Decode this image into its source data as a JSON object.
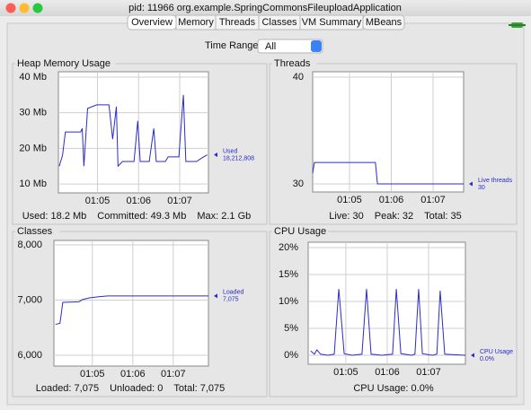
{
  "window": {
    "title": "pid: 11966 org.example.SpringCommonsFileuploadApplication",
    "tabs": [
      "Overview",
      "Memory",
      "Threads",
      "Classes",
      "VM Summary",
      "MBeans"
    ],
    "selected_tab": 0
  },
  "time_range": {
    "label": "Time Range:",
    "value": "All"
  },
  "chart_data": [
    {
      "type": "line",
      "title": "Heap Memory Usage",
      "grid": true,
      "xlim": [
        4.05,
        7.7
      ],
      "xticks": [
        {
          "value": 5,
          "label": "01:05"
        },
        {
          "value": 6,
          "label": "01:06"
        },
        {
          "value": 7,
          "label": "01:07"
        }
      ],
      "ylim": [
        7.5,
        41.5
      ],
      "yticks": [
        {
          "value": 10,
          "label": "10 Mb"
        },
        {
          "value": 20,
          "label": "20 Mb"
        },
        {
          "value": 30,
          "label": "30 Mb"
        },
        {
          "value": 40,
          "label": "40 Mb"
        }
      ],
      "series": [
        {
          "name": "Used",
          "color": "#2b2bc8",
          "current_label": "18,212,808",
          "x": [
            4.07,
            4.15,
            4.22,
            4.59,
            4.63,
            4.67,
            4.76,
            4.98,
            5.28,
            5.37,
            5.46,
            5.5,
            5.61,
            5.89,
            5.98,
            6.04,
            6.26,
            6.37,
            6.43,
            6.65,
            6.72,
            6.98,
            7.09,
            7.15,
            7.41,
            7.54,
            7.67
          ],
          "values": [
            15,
            18,
            24.6,
            24.6,
            25.6,
            15,
            31.2,
            32.2,
            32.2,
            22.6,
            31.7,
            15,
            16.3,
            16.3,
            27.7,
            16.3,
            16.3,
            25.6,
            16.3,
            16.3,
            17.6,
            17.6,
            35,
            16.3,
            16.3,
            17.3,
            18.2
          ]
        }
      ],
      "stats": [
        "Used: 18.2 Mb",
        "Committed: 49.3 Mb",
        "Max: 2.1 Gb"
      ]
    },
    {
      "type": "line",
      "title": "Threads",
      "grid": true,
      "xlim": [
        4.12,
        7.73
      ],
      "xticks": [
        {
          "value": 5,
          "label": "01:05"
        },
        {
          "value": 6,
          "label": "01:06"
        },
        {
          "value": 7,
          "label": "01:07"
        }
      ],
      "ylim": [
        29.24,
        40.5
      ],
      "yticks": [
        30,
        40
      ],
      "series": [
        {
          "name": "Live threads",
          "color": "#2b2bc8",
          "current_label": "30",
          "x": [
            4.12,
            4.16,
            5.62,
            5.67,
            7.73
          ],
          "values": [
            31,
            32,
            32,
            30,
            30
          ]
        }
      ],
      "stats": [
        "Live: 30",
        "Peak: 32",
        "Total: 35"
      ]
    },
    {
      "type": "line",
      "title": "Classes",
      "grid": true,
      "xlim": [
        4.05,
        7.87
      ],
      "xticks": [
        {
          "value": 5,
          "label": "01:05"
        },
        {
          "value": 6,
          "label": "01:06"
        },
        {
          "value": 7,
          "label": "01:07"
        }
      ],
      "ylim": [
        5805,
        8081
      ],
      "yticks": [
        {
          "value": 6000,
          "label": "6,000"
        },
        {
          "value": 7000,
          "label": "7,000"
        },
        {
          "value": 8000,
          "label": "8,000"
        }
      ],
      "series": [
        {
          "name": "Loaded",
          "color": "#2b2bc8",
          "current_label": "7,075",
          "x": [
            4.09,
            4.2,
            4.27,
            4.67,
            4.76,
            4.93,
            5.16,
            5.38,
            7.87
          ],
          "values": [
            6560,
            6580,
            6960,
            6970,
            7010,
            7040,
            7060,
            7075,
            7075
          ]
        }
      ],
      "stats": [
        "Loaded: 7,075",
        "Unloaded: 0",
        "Total: 7,075"
      ]
    },
    {
      "type": "line",
      "title": "CPU Usage",
      "grid": true,
      "xlim": [
        4.09,
        7.89
      ],
      "xticks": [
        {
          "value": 5,
          "label": "01:05"
        },
        {
          "value": 6,
          "label": "01:06"
        },
        {
          "value": 7,
          "label": "01:07"
        }
      ],
      "ylim": [
        -1.67,
        21
      ],
      "yticks": [
        {
          "value": 0,
          "label": "0%"
        },
        {
          "value": 5,
          "label": "5%"
        },
        {
          "value": 10,
          "label": "10%"
        },
        {
          "value": 15,
          "label": "15%"
        },
        {
          "value": 20,
          "label": "20%"
        }
      ],
      "series": [
        {
          "name": "CPU Usage",
          "color": "#2b2bc8",
          "current_label": "0.0%",
          "x": [
            4.15,
            4.24,
            4.3,
            4.39,
            4.57,
            4.72,
            4.83,
            4.96,
            5.15,
            5.39,
            5.5,
            5.61,
            5.87,
            6.13,
            6.22,
            6.33,
            6.59,
            6.67,
            6.76,
            6.85,
            7.09,
            7.2,
            7.28,
            7.39,
            7.61,
            7.89
          ],
          "values": [
            0.8,
            0.2,
            1,
            0.2,
            0,
            0.2,
            12.3,
            0.3,
            0,
            0.2,
            12.3,
            0.2,
            0,
            0.2,
            12.3,
            0.3,
            0,
            0.2,
            12.3,
            0.3,
            0,
            0.2,
            12,
            0.2,
            0.1,
            0
          ]
        }
      ],
      "stats": [
        "CPU Usage: 0.0%"
      ]
    }
  ]
}
